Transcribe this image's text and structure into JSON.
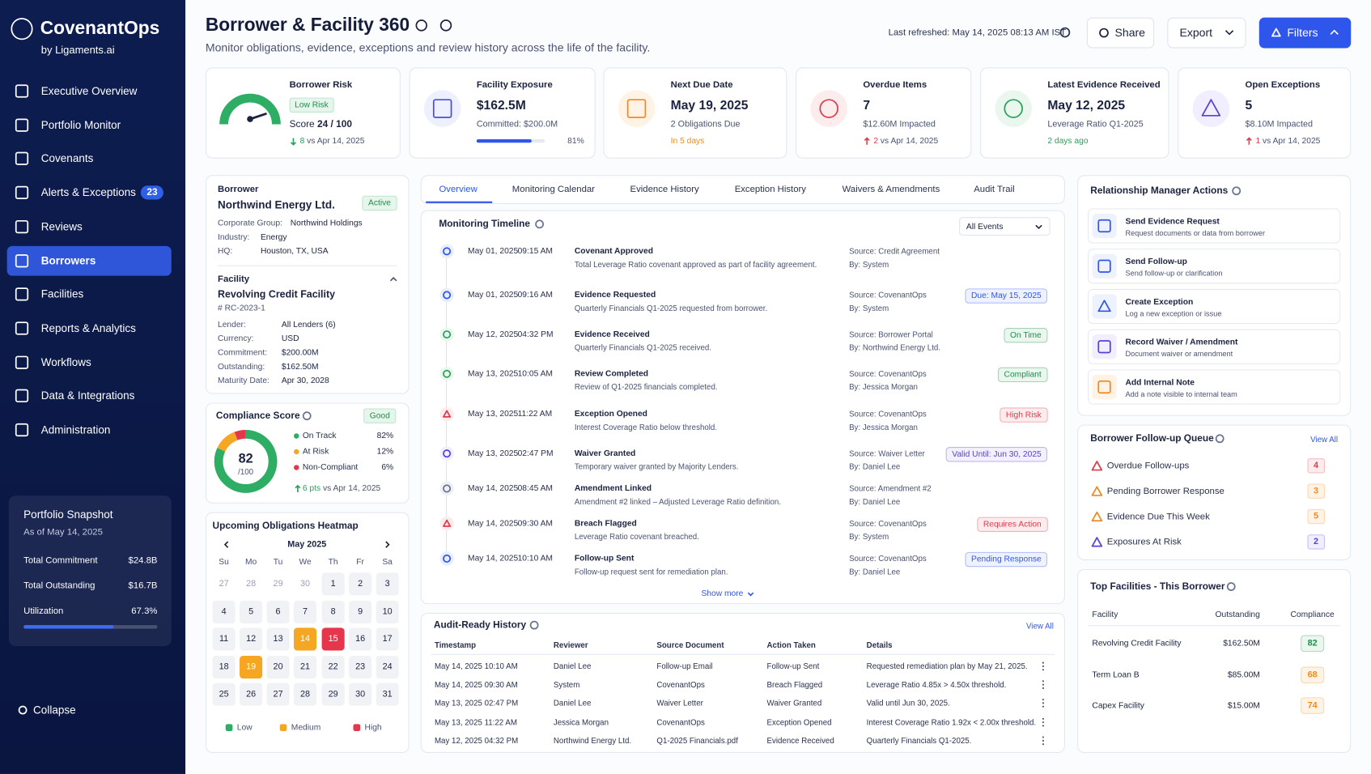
{
  "sidebar": {
    "brand": "CovenantOps",
    "tagline": "by Ligaments.ai",
    "nav": [
      {
        "label": "Executive Overview"
      },
      {
        "label": "Portfolio Monitor"
      },
      {
        "label": "Covenants"
      },
      {
        "label": "Alerts & Exceptions",
        "badge": "23"
      },
      {
        "label": "Reviews"
      },
      {
        "label": "Borrowers"
      },
      {
        "label": "Facilities"
      },
      {
        "label": "Reports & Analytics"
      },
      {
        "label": "Workflows"
      },
      {
        "label": "Data & Integrations"
      },
      {
        "label": "Administration"
      }
    ],
    "snapshot": {
      "title": "Portfolio Snapshot",
      "as_of": "As of May 14, 2025",
      "rows": [
        {
          "label": "Total Commitment",
          "value": "$24.8B"
        },
        {
          "label": "Total Outstanding",
          "value": "$16.7B"
        },
        {
          "label": "Utilization",
          "value": "67.3%"
        }
      ]
    },
    "collapse": "Collapse"
  },
  "header": {
    "title": "Borrower & Facility 360",
    "subtitle": "Monitor obligations, evidence, exceptions and review history across the life of the facility.",
    "refreshed": "Last refreshed: May 14, 2025 08:13 AM IST",
    "share": "Share",
    "export": "Export",
    "filters": "Filters"
  },
  "kpis": [
    {
      "label": "Borrower Risk",
      "badge": "Low Risk",
      "prefix": "Score",
      "value": "24 / 100",
      "delta": "8",
      "note": "vs Apr 14, 2025"
    },
    {
      "label": "Facility Exposure",
      "value": "$162.5M",
      "sub": "Committed: $200.0M",
      "progress": "81%"
    },
    {
      "label": "Next Due Date",
      "value": "May 19, 2025",
      "sub": "2 Obligations Due",
      "note": "In 5 days"
    },
    {
      "label": "Overdue Items",
      "value": "7",
      "sub": "$12.60M Impacted",
      "delta": "2",
      "note": "vs Apr 14, 2025"
    },
    {
      "label": "Latest Evidence Received",
      "value": "May 12, 2025",
      "sub": "Leverage Ratio Q1-2025",
      "note": "2 days ago"
    },
    {
      "label": "Open Exceptions",
      "value": "5",
      "sub": "$8.10M Impacted",
      "delta": "1",
      "note": "vs Apr 14, 2025"
    }
  ],
  "borrower": {
    "label": "Borrower",
    "name": "Northwind Energy Ltd.",
    "status": "Active",
    "fields": [
      {
        "label": "Corporate Group:",
        "value": "Northwind Holdings"
      },
      {
        "label": "Industry:",
        "value": "Energy"
      },
      {
        "label": "HQ:",
        "value": "Houston, TX, USA"
      }
    ],
    "facility": {
      "label": "Facility",
      "name": "Revolving Credit Facility",
      "id": "# RC-2023-1",
      "fields": [
        {
          "label": "Lender:",
          "value": "All Lenders (6)"
        },
        {
          "label": "Currency:",
          "value": "USD"
        },
        {
          "label": "Commitment:",
          "value": "$200.00M"
        },
        {
          "label": "Outstanding:",
          "value": "$162.50M"
        },
        {
          "label": "Maturity Date:",
          "value": "Apr 30, 2028"
        }
      ]
    }
  },
  "compliance": {
    "title": "Compliance Score",
    "badge": "Good",
    "score": "82",
    "out_of": "/100",
    "legend": [
      {
        "label": "On Track",
        "value": "82%"
      },
      {
        "label": "At Risk",
        "value": "12%"
      },
      {
        "label": "Non-Compliant",
        "value": "6%"
      }
    ],
    "delta": "6 pts",
    "note": "vs Apr 14, 2025"
  },
  "heatmap": {
    "title": "Upcoming Obligations Heatmap",
    "month": "May 2025",
    "weekdays": [
      "Su",
      "Mo",
      "Tu",
      "We",
      "Th",
      "Fr",
      "Sa"
    ],
    "days": [
      "27",
      "28",
      "29",
      "30",
      "1",
      "2",
      "3",
      "4",
      "5",
      "6",
      "7",
      "8",
      "9",
      "10",
      "11",
      "12",
      "13",
      "14",
      "15",
      "16",
      "17",
      "18",
      "19",
      "20",
      "21",
      "22",
      "23",
      "24",
      "25",
      "26",
      "27",
      "28",
      "29",
      "30",
      "31"
    ],
    "legend": [
      "Low",
      "Medium",
      "High"
    ]
  },
  "tabs": [
    "Overview",
    "Monitoring Calendar",
    "Evidence History",
    "Exception History",
    "Waivers & Amendments",
    "Audit Trail"
  ],
  "timeline": {
    "title": "Monitoring Timeline",
    "filter": "All Events",
    "more": "Show more",
    "events": [
      {
        "date": "May 01, 2025",
        "time": "09:15 AM",
        "event": "Covenant Approved",
        "desc": "Total Leverage Ratio covenant approved as part of facility agreement.",
        "source": "Source: Credit Agreement",
        "by": "By: System"
      },
      {
        "date": "May 01, 2025",
        "time": "09:16 AM",
        "event": "Evidence Requested",
        "desc": "Quarterly Financials Q1-2025 requested from borrower.",
        "source": "Source: CovenantOps",
        "by": "By: System",
        "tag": "Due: May 15, 2025"
      },
      {
        "date": "May 12, 2025",
        "time": "04:32 PM",
        "event": "Evidence Received",
        "desc": "Quarterly Financials Q1-2025 received.",
        "source": "Source: Borrower Portal",
        "by": "By: Northwind Energy Ltd.",
        "tag": "On Time"
      },
      {
        "date": "May 13, 2025",
        "time": "10:05 AM",
        "event": "Review Completed",
        "desc": "Review of Q1-2025 financials completed.",
        "source": "Source: CovenantOps",
        "by": "By: Jessica Morgan",
        "tag": "Compliant"
      },
      {
        "date": "May 13, 2025",
        "time": "11:22 AM",
        "event": "Exception Opened",
        "desc": "Interest Coverage Ratio below threshold.",
        "source": "Source: CovenantOps",
        "by": "By: Jessica Morgan",
        "tag": "High Risk"
      },
      {
        "date": "May 13, 2025",
        "time": "02:47 PM",
        "event": "Waiver Granted",
        "desc": "Temporary waiver granted by Majority Lenders.",
        "source": "Source: Waiver Letter",
        "by": "By: Daniel Lee",
        "tag": "Valid Until: Jun 30, 2025"
      },
      {
        "date": "May 14, 2025",
        "time": "08:45 AM",
        "event": "Amendment Linked",
        "desc": "Amendment #2 linked – Adjusted Leverage Ratio definition.",
        "source": "Source: Amendment #2",
        "by": "By: Daniel Lee"
      },
      {
        "date": "May 14, 2025",
        "time": "09:30 AM",
        "event": "Breach Flagged",
        "desc": "Leverage Ratio covenant breached.",
        "source": "Source: CovenantOps",
        "by": "By: System",
        "tag": "Requires Action"
      },
      {
        "date": "May 14, 2025",
        "time": "10:10 AM",
        "event": "Follow-up Sent",
        "desc": "Follow-up request sent for remediation plan.",
        "source": "Source: CovenantOps",
        "by": "By: Daniel Lee",
        "tag": "Pending Response"
      }
    ]
  },
  "audit": {
    "title": "Audit-Ready History",
    "view_all": "View All",
    "columns": [
      "Timestamp",
      "Reviewer",
      "Source Document",
      "Action Taken",
      "Details"
    ],
    "rows": [
      [
        "May 14, 2025 10:10 AM",
        "Daniel Lee",
        "Follow-up Email",
        "Follow-up Sent",
        "Requested remediation plan by May 21, 2025."
      ],
      [
        "May 14, 2025 09:30 AM",
        "System",
        "CovenantOps",
        "Breach Flagged",
        "Leverage Ratio 4.85x > 4.50x threshold."
      ],
      [
        "May 13, 2025 02:47 PM",
        "Daniel Lee",
        "Waiver Letter",
        "Waiver Granted",
        "Valid until Jun 30, 2025."
      ],
      [
        "May 13, 2025 11:22 AM",
        "Jessica Morgan",
        "CovenantOps",
        "Exception Opened",
        "Interest Coverage Ratio 1.92x < 2.00x threshold."
      ],
      [
        "May 12, 2025 04:32 PM",
        "Northwind Energy Ltd.",
        "Q1-2025 Financials.pdf",
        "Evidence Received",
        "Quarterly Financials Q1-2025."
      ]
    ]
  },
  "actions": {
    "title": "Relationship Manager Actions",
    "items": [
      {
        "title": "Send Evidence Request",
        "desc": "Request documents or data from borrower"
      },
      {
        "title": "Send Follow-up",
        "desc": "Send follow-up or clarification"
      },
      {
        "title": "Create Exception",
        "desc": "Log a new exception or issue"
      },
      {
        "title": "Record Waiver / Amendment",
        "desc": "Document waiver or amendment"
      },
      {
        "title": "Add Internal Note",
        "desc": "Add a note visible to internal team"
      }
    ]
  },
  "queue": {
    "title": "Borrower Follow-up Queue",
    "view_all": "View All",
    "items": [
      {
        "label": "Overdue Follow-ups",
        "count": "4"
      },
      {
        "label": "Pending Borrower Response",
        "count": "3"
      },
      {
        "label": "Evidence Due This Week",
        "count": "5"
      },
      {
        "label": "Exposures At Risk",
        "count": "2"
      }
    ]
  },
  "top_facilities": {
    "title": "Top Facilities - This Borrower",
    "columns": [
      "Facility",
      "Outstanding",
      "Compliance"
    ],
    "rows": [
      [
        "Revolving Credit Facility",
        "$162.50M",
        "82"
      ],
      [
        "Term Loan B",
        "$85.00M",
        "68"
      ],
      [
        "Capex Facility",
        "$15.00M",
        "74"
      ]
    ]
  }
}
